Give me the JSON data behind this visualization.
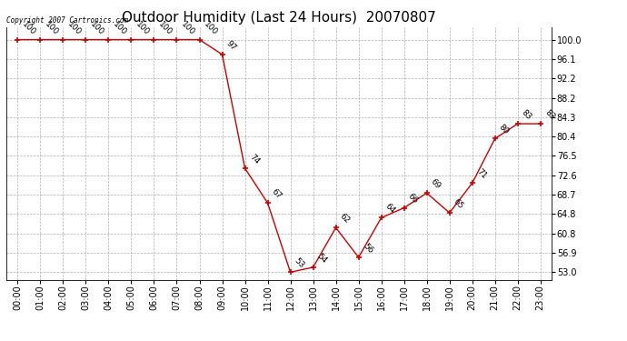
{
  "title": "Outdoor Humidity (Last 24 Hours)  20070807",
  "copyright": "Copyright 2007 Cartronics.com",
  "x_labels": [
    "00:00",
    "01:00",
    "02:00",
    "03:00",
    "04:00",
    "05:00",
    "06:00",
    "07:00",
    "08:00",
    "09:00",
    "10:00",
    "11:00",
    "12:00",
    "13:00",
    "14:00",
    "15:00",
    "16:00",
    "17:00",
    "18:00",
    "19:00",
    "20:00",
    "21:00",
    "22:00",
    "23:00"
  ],
  "x_values": [
    0,
    1,
    2,
    3,
    4,
    5,
    6,
    7,
    8,
    9,
    10,
    11,
    12,
    13,
    14,
    15,
    16,
    17,
    18,
    19,
    20,
    21,
    22,
    23
  ],
  "y_values": [
    100,
    100,
    100,
    100,
    100,
    100,
    100,
    100,
    100,
    97,
    74,
    67,
    53,
    54,
    62,
    56,
    64,
    66,
    69,
    65,
    71,
    80,
    83,
    83
  ],
  "y_ticks": [
    100.0,
    96.1,
    92.2,
    88.2,
    84.3,
    80.4,
    76.5,
    72.6,
    68.7,
    64.8,
    60.8,
    56.9,
    53.0
  ],
  "y_tick_labels": [
    "100.0",
    "96.1",
    "92.2",
    "88.2",
    "84.3",
    "80.4",
    "76.5",
    "72.6",
    "68.7",
    "64.8",
    "60.8",
    "56.9",
    "53.0"
  ],
  "ylim": [
    51.5,
    102.5
  ],
  "xlim": [
    -0.5,
    23.5
  ],
  "line_color": "#cc0000",
  "bg_color": "#ffffff",
  "grid_color": "#b0b0b0",
  "title_fontsize": 11,
  "tick_fontsize": 7,
  "annot_fontsize": 6.5
}
